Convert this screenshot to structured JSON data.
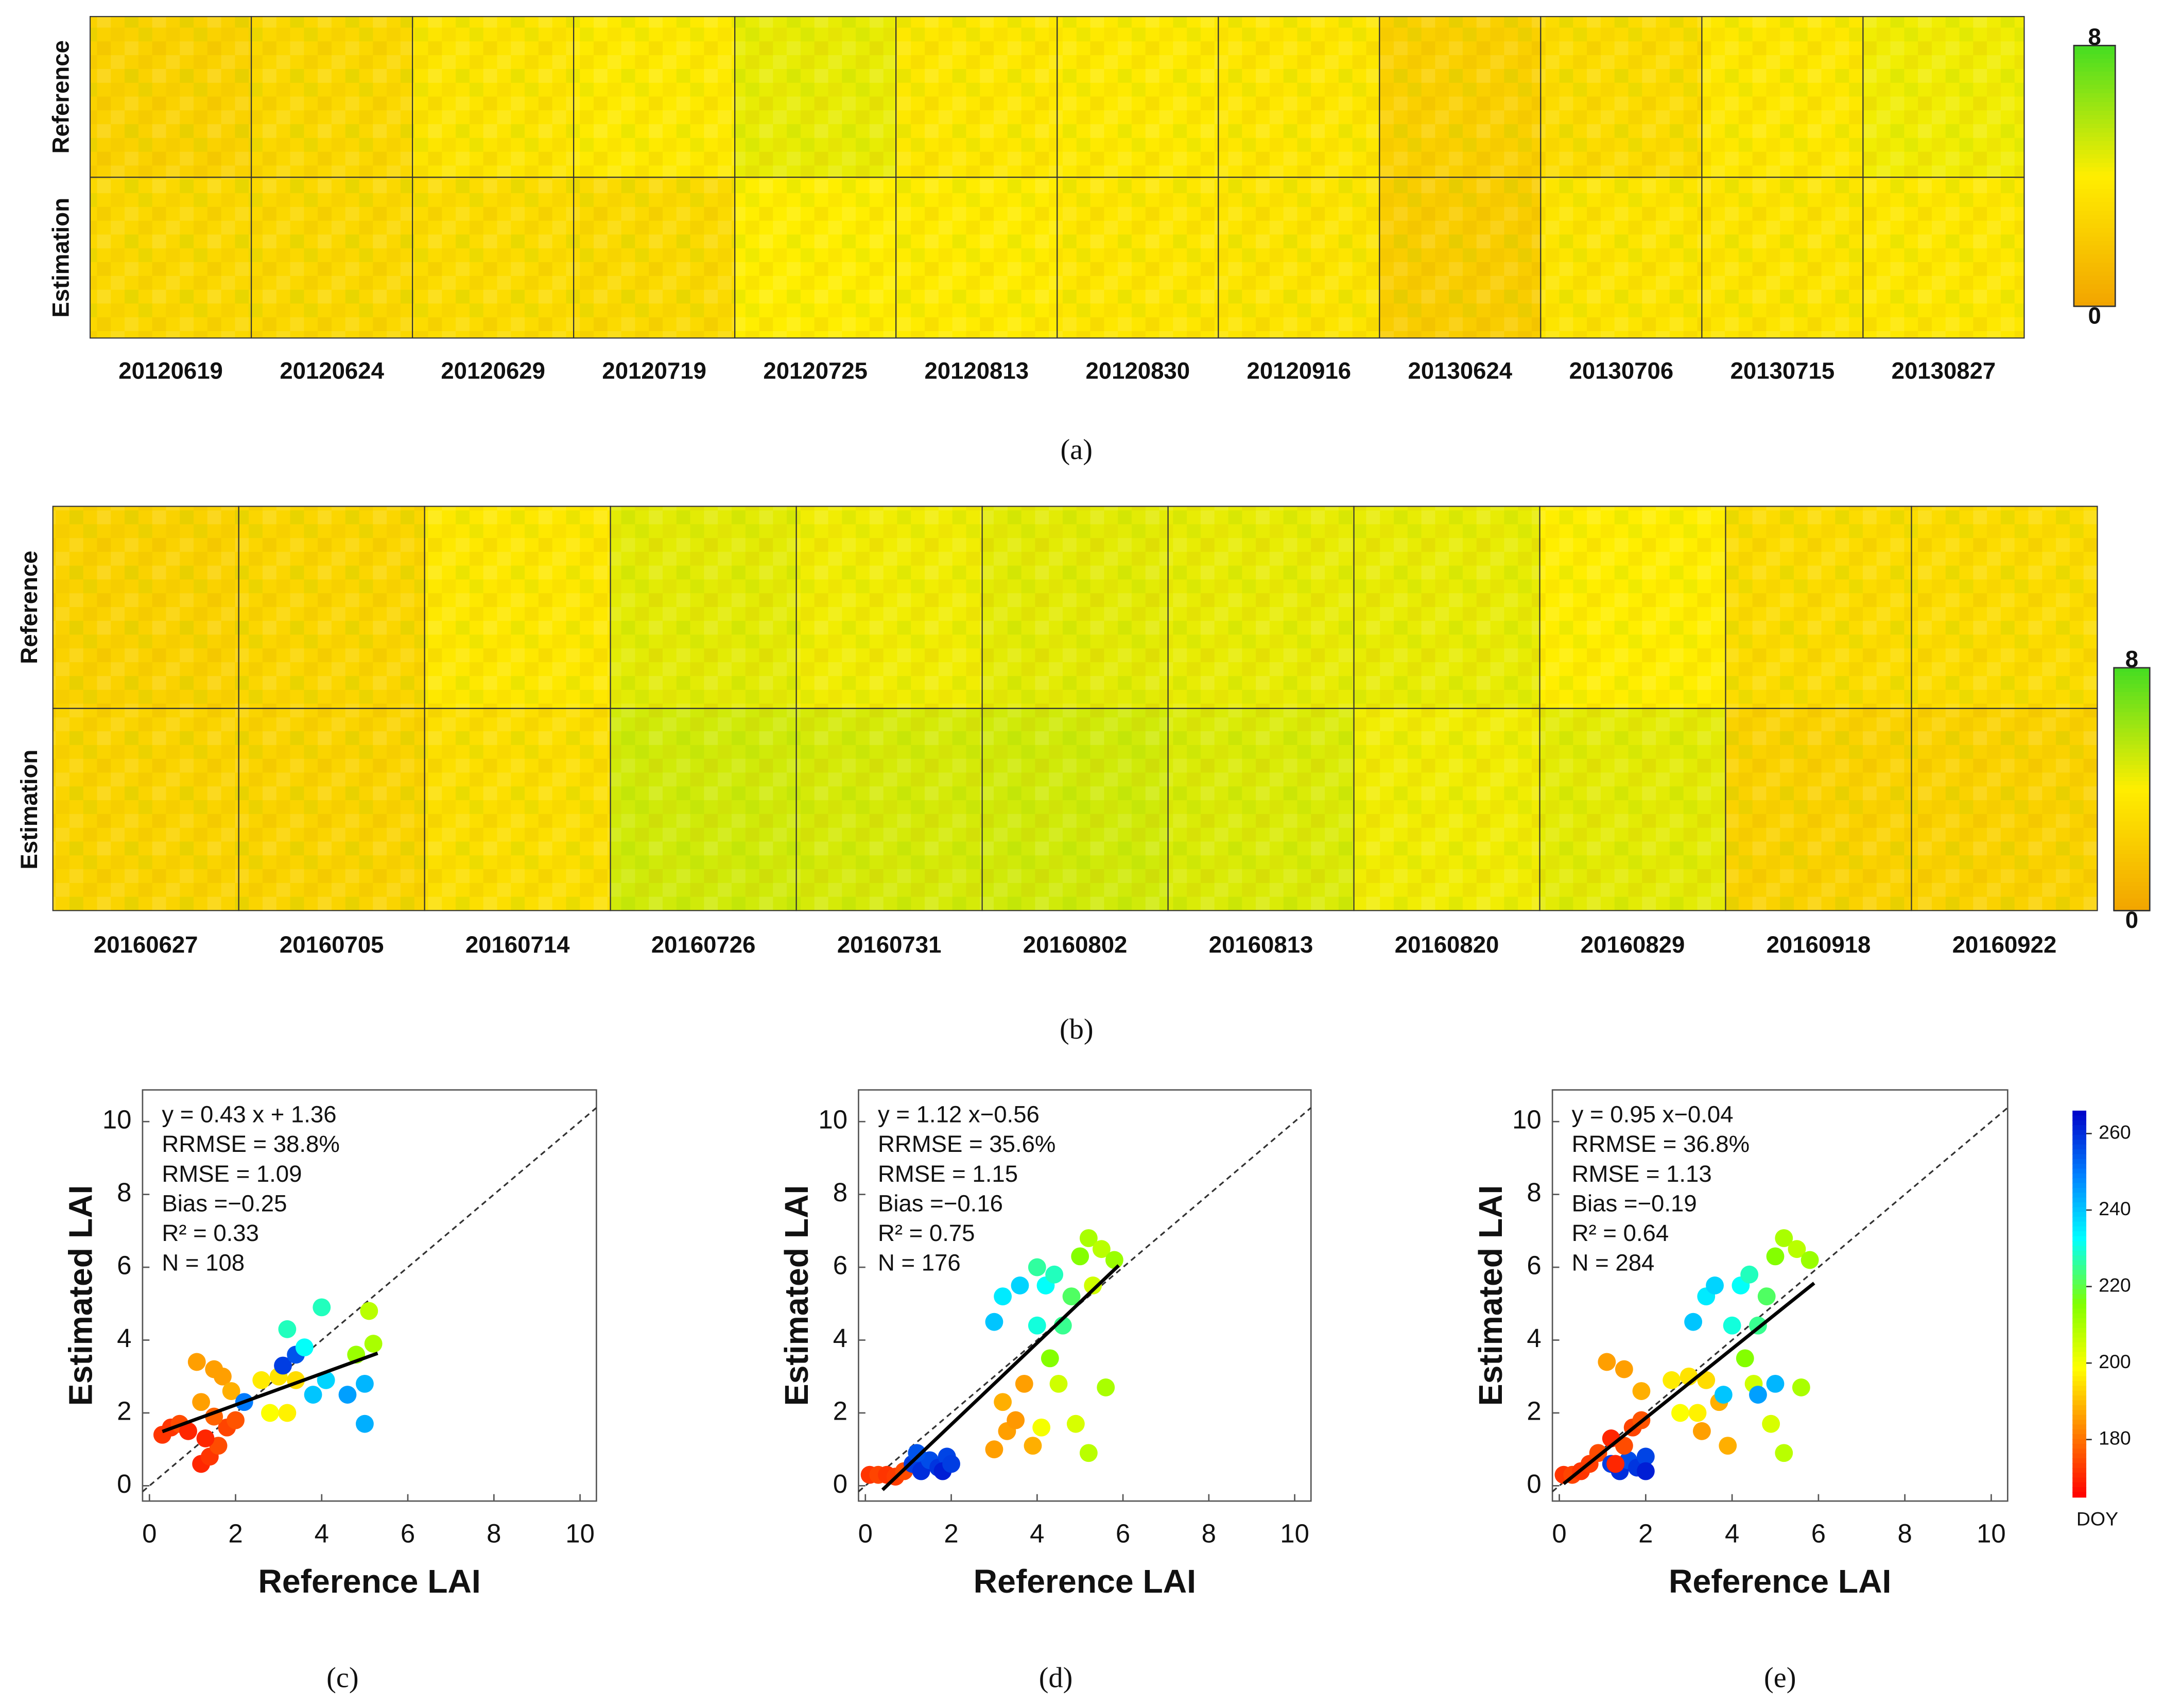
{
  "chart_data": [
    {
      "type": "heatmap",
      "caption": "(a)",
      "categories": [
        "20120619",
        "20120624",
        "20120629",
        "20120719",
        "20120725",
        "20120813",
        "20120830",
        "20120916",
        "20130624",
        "20130706",
        "20130715",
        "20130827"
      ],
      "series": [
        {
          "name": "Reference",
          "values": [
            2.5,
            2.8,
            3.5,
            3.8,
            4.5,
            3.7,
            3.8,
            3.6,
            2.4,
            3.0,
            3.7,
            4.3
          ]
        },
        {
          "name": "Estimation",
          "values": [
            2.8,
            2.8,
            3.0,
            2.9,
            4.0,
            3.9,
            3.6,
            3.5,
            2.2,
            3.5,
            3.5,
            3.7
          ]
        }
      ],
      "colormap": [
        "#f2a400",
        "#ffee00",
        "#44dd22"
      ],
      "colorbar_lim": [
        0,
        8
      ],
      "colorbar_ticks": [
        0,
        8
      ]
    },
    {
      "type": "heatmap",
      "caption": "(b)",
      "categories": [
        "20160627",
        "20160705",
        "20160714",
        "20160726",
        "20160731",
        "20160802",
        "20160813",
        "20160820",
        "20160829",
        "20160918",
        "20160922"
      ],
      "series": [
        {
          "name": "Reference",
          "values": [
            2.5,
            2.7,
            3.7,
            4.6,
            4.3,
            4.6,
            4.5,
            4.5,
            4.0,
            3.0,
            3.0
          ]
        },
        {
          "name": "Estimation",
          "values": [
            2.6,
            2.6,
            3.2,
            5.0,
            4.9,
            5.0,
            4.8,
            4.3,
            4.6,
            2.5,
            2.5
          ]
        }
      ],
      "colormap": [
        "#f2a400",
        "#ffee00",
        "#44dd22"
      ],
      "colorbar_lim": [
        0,
        8
      ],
      "colorbar_ticks": [
        0,
        8
      ]
    },
    {
      "type": "scatter",
      "caption": "(c)",
      "x_label": "Reference  LAI",
      "y_label": "Estimated  LAI",
      "annotations": [
        "y =  0.43 x +  1.36",
        "RRMSE =  38.8%",
        "RMSE =  1.09",
        "Bias =−0.25",
        "R² =  0.33",
        "N = 108"
      ],
      "xlim": [
        -0.16,
        10.38
      ],
      "ylim": [
        -0.42,
        10.87
      ],
      "xticks": [
        0,
        2,
        4,
        6,
        8,
        10
      ],
      "yticks": [
        0,
        2,
        4,
        6,
        8,
        10
      ],
      "fit": {
        "slope": 0.43,
        "intercept": 1.36,
        "x_range": [
          0.3,
          5.3
        ]
      },
      "colormap": [
        "#ff0000",
        "#ff8000",
        "#ffff00",
        "#80ff00",
        "#00ffff",
        "#0080ff",
        "#0000c8"
      ],
      "color_lim": [
        165,
        266
      ],
      "x": [
        0.3,
        0.5,
        0.7,
        0.9,
        1.2,
        1.4,
        1.6,
        1.3,
        1.8,
        2.0,
        1.5,
        1.2,
        1.1,
        1.5,
        1.7,
        1.9,
        2.2,
        2.6,
        2.8,
        3.2,
        3.0,
        3.4,
        3.1,
        3.4,
        3.2,
        3.6,
        4.0,
        3.8,
        4.6,
        5.0,
        5.0,
        4.8,
        5.1,
        5.2,
        4.1
      ],
      "y": [
        1.4,
        1.6,
        1.7,
        1.5,
        0.6,
        0.8,
        1.1,
        1.3,
        1.6,
        1.8,
        1.9,
        2.3,
        3.4,
        3.2,
        3.0,
        2.6,
        2.3,
        2.9,
        2.0,
        2.0,
        3.0,
        2.9,
        3.3,
        3.6,
        4.3,
        3.8,
        4.9,
        2.5,
        2.5,
        2.8,
        1.7,
        3.6,
        4.8,
        3.9,
        2.9
      ],
      "doy": [
        172,
        172,
        175,
        170,
        170,
        172,
        175,
        170,
        174,
        176,
        178,
        186,
        186,
        186,
        186,
        188,
        250,
        196,
        199,
        197,
        195,
        194,
        258,
        255,
        228,
        232,
        228,
        240,
        245,
        242,
        243,
        212,
        208,
        210,
        238
      ]
    },
    {
      "type": "scatter",
      "caption": "(d)",
      "x_label": "Reference  LAI",
      "y_label": "Estimated  LAI",
      "annotations": [
        "y =  1.12 x−0.56",
        "RRMSE =  35.6%",
        "RMSE =  1.15",
        "Bias =−0.16",
        "R² =  0.75",
        "N = 176"
      ],
      "xlim": [
        -0.16,
        10.38
      ],
      "ylim": [
        -0.42,
        10.87
      ],
      "xticks": [
        0,
        2,
        4,
        6,
        8,
        10
      ],
      "yticks": [
        0,
        2,
        4,
        6,
        8,
        10
      ],
      "fit": {
        "slope": 1.12,
        "intercept": -0.56,
        "x_range": [
          0.4,
          5.9
        ]
      },
      "colormap": [
        "#ff0000",
        "#ff8000",
        "#ffff00",
        "#80ff00",
        "#00ffff",
        "#0080ff",
        "#0000c8"
      ],
      "color_lim": [
        165,
        266
      ],
      "x": [
        0.1,
        0.3,
        0.5,
        0.7,
        0.9,
        1.1,
        1.3,
        1.5,
        1.7,
        1.9,
        1.2,
        1.8,
        2.0,
        3.0,
        3.3,
        3.2,
        3.7,
        3.5,
        3.9,
        3.0,
        3.2,
        3.6,
        4.0,
        4.2,
        4.4,
        4.0,
        4.6,
        4.8,
        5.0,
        5.2,
        5.5,
        5.8,
        5.3,
        4.5,
        4.9,
        5.2,
        4.3,
        5.6,
        4.1
      ],
      "y": [
        0.3,
        0.3,
        0.3,
        0.25,
        0.4,
        0.6,
        0.4,
        0.7,
        0.5,
        0.8,
        0.9,
        0.4,
        0.6,
        1.0,
        1.5,
        2.3,
        2.8,
        1.8,
        1.1,
        4.5,
        5.2,
        5.5,
        4.4,
        5.5,
        5.8,
        6.0,
        4.4,
        5.2,
        6.3,
        6.8,
        6.5,
        6.2,
        5.5,
        2.8,
        1.7,
        0.9,
        3.5,
        2.7,
        1.6
      ],
      "doy": [
        172,
        174,
        172,
        173,
        175,
        258,
        260,
        256,
        259,
        257,
        255,
        262,
        258,
        186,
        186,
        188,
        186,
        185,
        188,
        240,
        235,
        238,
        230,
        232,
        228,
        226,
        225,
        222,
        215,
        210,
        208,
        212,
        205,
        205,
        204,
        208,
        215,
        210,
        200
      ]
    },
    {
      "type": "scatter",
      "caption": "(e)",
      "x_label": "Reference  LAI",
      "y_label": "Estimated  LAI",
      "annotations": [
        "y =  0.95 x−0.04",
        "RRMSE =  36.8%",
        "RMSE =  1.13",
        "Bias =−0.19",
        "R² =  0.64",
        "N = 284"
      ],
      "xlim": [
        -0.16,
        10.38
      ],
      "ylim": [
        -0.42,
        10.87
      ],
      "xticks": [
        0,
        2,
        4,
        6,
        8,
        10
      ],
      "yticks": [
        0,
        2,
        4,
        6,
        8,
        10
      ],
      "fit": {
        "slope": 0.95,
        "intercept": -0.04,
        "x_range": [
          0.1,
          5.9
        ]
      },
      "colormap": [
        "#ff0000",
        "#ff8000",
        "#ffff00",
        "#80ff00",
        "#00ffff",
        "#0080ff",
        "#0000c8"
      ],
      "color_lim": [
        165,
        266
      ],
      "colorbar_label": "DOY",
      "colorbar_ticks": [
        180,
        200,
        220,
        240,
        260
      ],
      "x": [
        0.1,
        0.3,
        0.5,
        0.7,
        0.9,
        1.2,
        1.4,
        1.6,
        1.8,
        2.0,
        1.1,
        1.5,
        1.9,
        1.2,
        1.7,
        1.9,
        1.3,
        1.5,
        2.0,
        2.6,
        2.8,
        3.2,
        3.0,
        3.4,
        3.3,
        3.7,
        3.9,
        3.1,
        3.4,
        3.6,
        4.0,
        4.2,
        4.4,
        4.6,
        4.8,
        5.0,
        5.2,
        5.5,
        5.8,
        4.5,
        4.9,
        5.2,
        4.3,
        5.6,
        4.6,
        5.0,
        3.8
      ],
      "y": [
        0.3,
        0.3,
        0.4,
        0.6,
        0.9,
        0.6,
        0.4,
        0.7,
        0.5,
        0.8,
        3.4,
        3.2,
        2.6,
        1.3,
        1.6,
        1.8,
        0.6,
        1.1,
        0.4,
        2.9,
        2.0,
        2.0,
        3.0,
        2.9,
        1.5,
        2.3,
        1.1,
        4.5,
        5.2,
        5.5,
        4.4,
        5.5,
        5.8,
        4.4,
        5.2,
        6.3,
        6.8,
        6.5,
        6.2,
        2.8,
        1.7,
        0.9,
        3.5,
        2.7,
        2.5,
        2.8,
        2.5
      ],
      "doy": [
        172,
        174,
        172,
        173,
        175,
        258,
        260,
        256,
        259,
        257,
        186,
        186,
        188,
        170,
        174,
        176,
        170,
        175,
        262,
        196,
        199,
        197,
        195,
        194,
        186,
        188,
        188,
        240,
        235,
        238,
        230,
        232,
        228,
        225,
        222,
        215,
        210,
        208,
        212,
        205,
        204,
        208,
        215,
        210,
        245,
        242,
        240
      ]
    }
  ]
}
